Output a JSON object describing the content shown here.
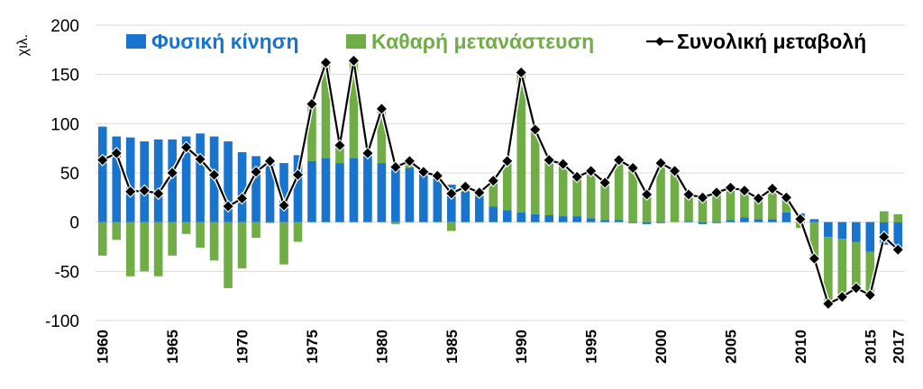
{
  "chart_data": {
    "type": "bar",
    "unit_label": "χιλ.",
    "ylim": [
      -100,
      200
    ],
    "y_ticks": [
      "-100",
      "-50",
      "0",
      "50",
      "100",
      "150",
      "200"
    ],
    "grid": true,
    "legend_position": "top",
    "x": [
      1960,
      1961,
      1962,
      1963,
      1964,
      1965,
      1966,
      1967,
      1968,
      1969,
      1970,
      1971,
      1972,
      1973,
      1974,
      1975,
      1976,
      1977,
      1978,
      1979,
      1980,
      1981,
      1982,
      1983,
      1984,
      1985,
      1986,
      1987,
      1988,
      1989,
      1990,
      1991,
      1992,
      1993,
      1994,
      1995,
      1996,
      1997,
      1998,
      1999,
      2000,
      2001,
      2002,
      2003,
      2004,
      2005,
      2006,
      2007,
      2008,
      2009,
      2010,
      2011,
      2012,
      2013,
      2014,
      2015,
      2016,
      2017
    ],
    "x_tick_labels": [
      "1960",
      "1965",
      "1970",
      "1975",
      "1980",
      "1985",
      "1990",
      "1995",
      "2000",
      "2005",
      "2010",
      "2015",
      "2017"
    ],
    "series": [
      {
        "name": "Φυσική κίνηση",
        "kind": "bar",
        "color": "#1874CD",
        "values": [
          97,
          87,
          86,
          82,
          84,
          84,
          87,
          90,
          87,
          82,
          71,
          67,
          63,
          60,
          68,
          62,
          65,
          60,
          65,
          67,
          60,
          58,
          55,
          51,
          44,
          38,
          31,
          26,
          16,
          12,
          10,
          8,
          7,
          6,
          6,
          4,
          2,
          2,
          -1,
          -2,
          -1,
          0,
          1,
          -2,
          -1,
          2,
          5,
          3,
          3,
          10,
          9,
          3,
          -15,
          -17,
          -20,
          -30,
          -23,
          -30
        ]
      },
      {
        "name": "Καθαρή μετανάστευση",
        "kind": "bar",
        "color": "#70AD47",
        "values": [
          -34,
          -18,
          -55,
          -50,
          -55,
          -34,
          -12,
          -26,
          -39,
          -67,
          -47,
          -16,
          -1,
          -43,
          -20,
          58,
          97,
          18,
          99,
          3,
          55,
          -2,
          7,
          0,
          4,
          -9,
          5,
          4,
          26,
          50,
          142,
          86,
          56,
          53,
          40,
          48,
          38,
          62,
          56,
          30,
          61,
          52,
          27,
          27,
          31,
          33,
          27,
          21,
          31,
          15,
          -6,
          -40,
          -68,
          -59,
          -47,
          -44,
          11,
          8
        ]
      },
      {
        "name": "Συνολική μεταβολή",
        "kind": "line",
        "color": "#000000",
        "values": [
          63,
          70,
          31,
          32,
          29,
          50,
          76,
          64,
          48,
          16,
          24,
          51,
          62,
          17,
          48,
          120,
          162,
          78,
          164,
          70,
          115,
          56,
          62,
          51,
          47,
          29,
          36,
          30,
          42,
          62,
          152,
          94,
          63,
          59,
          46,
          52,
          40,
          63,
          55,
          28,
          60,
          52,
          28,
          25,
          30,
          35,
          32,
          24,
          34,
          25,
          3,
          -37,
          -83,
          -76,
          -67,
          -74,
          -15,
          -28
        ]
      }
    ]
  }
}
